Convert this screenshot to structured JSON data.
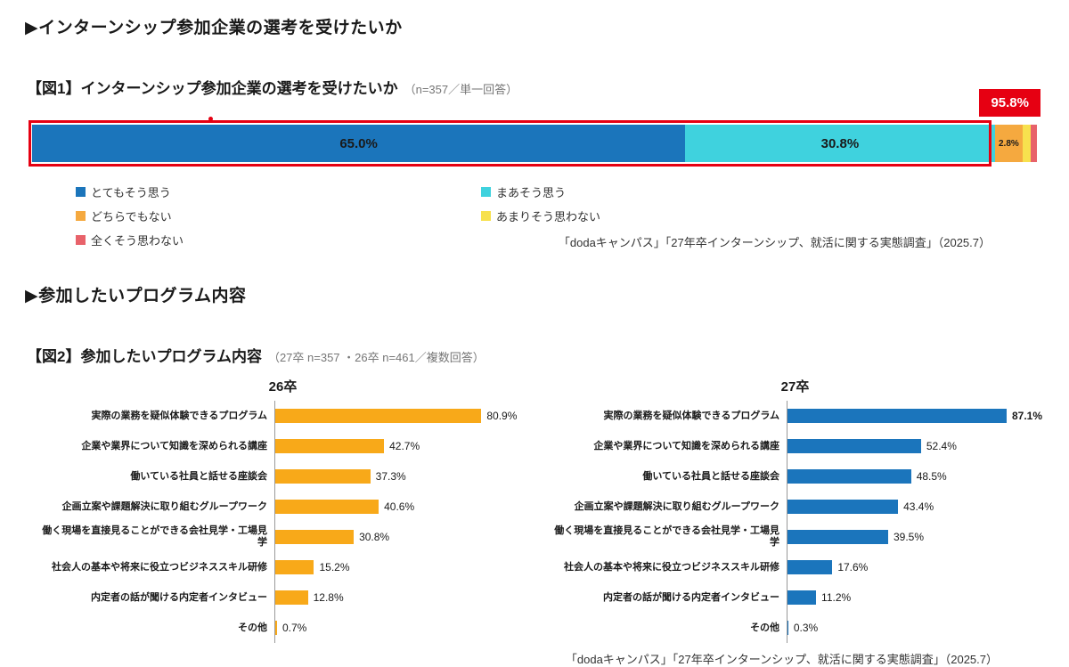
{
  "section1": {
    "heading": "▶インターンシップ参加企業の選考を受けたいか"
  },
  "fig1": {
    "title": "【図1】インターンシップ参加企業の選考を受けたいか",
    "subtitle": "（n=357／単一回答）",
    "highlight": {
      "label": "95.8%",
      "value": 95.8,
      "color": "#e60012"
    },
    "segments": [
      {
        "label": "とてもそう思う",
        "value": 65.0,
        "display": "65.0%",
        "color": "#1b75bb"
      },
      {
        "label": "まあそう思う",
        "value": 30.8,
        "display": "30.8%",
        "color": "#3fd2de"
      },
      {
        "label": "どちらでもない",
        "value": 2.8,
        "display": "2.8%",
        "color": "#f5a93f"
      },
      {
        "label": "あまりそう思わない",
        "value": 0.8,
        "display": "",
        "color": "#f7e14e"
      },
      {
        "label": "全くそう思わない",
        "value": 0.6,
        "display": "",
        "color": "#e8626a"
      }
    ],
    "source": "「dodaキャンパス」「27年卒インターンシップ、就活に関する実態調査」（2025.7）"
  },
  "section2": {
    "heading": "▶参加したいプログラム内容"
  },
  "fig2": {
    "title": "【図2】参加したいプログラム内容",
    "subtitle": "（27卒 n=357 ・26卒 n=461／複数回答）",
    "source": "「dodaキャンパス」「27年卒インターンシップ、就活に関する実態調査」（2025.7）",
    "chart26": {
      "title": "26卒",
      "color": "#f8a919",
      "rows": [
        {
          "label": "実際の業務を疑似体験できるプログラム",
          "value": 80.9,
          "display": "80.9%"
        },
        {
          "label": "企業や業界について知識を深められる講座",
          "value": 42.7,
          "display": "42.7%"
        },
        {
          "label": "働いている社員と話せる座談会",
          "value": 37.3,
          "display": "37.3%"
        },
        {
          "label": "企画立案や課題解決に取り組むグループワーク",
          "value": 40.6,
          "display": "40.6%"
        },
        {
          "label": "働く現場を直接見ることができる会社見学・工場見学",
          "value": 30.8,
          "display": "30.8%"
        },
        {
          "label": "社会人の基本や将来に役立つビジネススキル研修",
          "value": 15.2,
          "display": "15.2%"
        },
        {
          "label": "内定者の話が聞ける内定者インタビュー",
          "value": 12.8,
          "display": "12.8%"
        },
        {
          "label": "その他",
          "value": 0.7,
          "display": "0.7%"
        }
      ]
    },
    "chart27": {
      "title": "27卒",
      "color": "#1b75bc",
      "rows": [
        {
          "label": "実際の業務を疑似体験できるプログラム",
          "value": 87.1,
          "display": "87.1%"
        },
        {
          "label": "企業や業界について知識を深められる講座",
          "value": 52.4,
          "display": "52.4%"
        },
        {
          "label": "働いている社員と話せる座談会",
          "value": 48.5,
          "display": "48.5%"
        },
        {
          "label": "企画立案や課題解決に取り組むグループワーク",
          "value": 43.4,
          "display": "43.4%"
        },
        {
          "label": "働く現場を直接見ることができる会社見学・工場見学",
          "value": 39.5,
          "display": "39.5%"
        },
        {
          "label": "社会人の基本や将来に役立つビジネススキル研修",
          "value": 17.6,
          "display": "17.6%"
        },
        {
          "label": "内定者の話が聞ける内定者インタビュー",
          "value": 11.2,
          "display": "11.2%"
        },
        {
          "label": "その他",
          "value": 0.3,
          "display": "0.3%"
        }
      ]
    }
  },
  "chart_data": [
    {
      "type": "bar",
      "subtype": "horizontal-stacked",
      "title": "【図1】インターンシップ参加企業の選考を受けたいか（n=357／単一回答）",
      "categories": [
        "とてもそう思う",
        "まあそう思う",
        "どちらでもない",
        "あまりそう思わない",
        "全くそう思わない"
      ],
      "values": [
        65.0,
        30.8,
        2.8,
        0.8,
        0.6
      ],
      "annotation": "95.8%",
      "xlim": [
        0,
        100
      ],
      "legend_position": "below",
      "colors": [
        "#1b75bb",
        "#3fd2de",
        "#f5a93f",
        "#f7e14e",
        "#e8626a"
      ]
    },
    {
      "type": "bar",
      "subtype": "horizontal",
      "title": "【図2】参加したいプログラム内容（27卒 n=357 ・26卒 n=461／複数回答）",
      "categories": [
        "実際の業務を疑似体験できるプログラム",
        "企業や業界について知識を深められる講座",
        "働いている社員と話せる座談会",
        "企画立案や課題解決に取り組むグループワーク",
        "働く現場を直接見ることができる会社見学・工場見学",
        "社会人の基本や将来に役立つビジネススキル研修",
        "内定者の話が聞ける内定者インタビュー",
        "その他"
      ],
      "series": [
        {
          "name": "26卒",
          "color": "#f8a919",
          "values": [
            80.9,
            42.7,
            37.3,
            40.6,
            30.8,
            15.2,
            12.8,
            0.7
          ]
        },
        {
          "name": "27卒",
          "color": "#1b75bc",
          "values": [
            87.1,
            52.4,
            48.5,
            43.4,
            39.5,
            17.6,
            11.2,
            0.3
          ]
        }
      ],
      "xlim": [
        0,
        100
      ],
      "grid": false
    }
  ]
}
